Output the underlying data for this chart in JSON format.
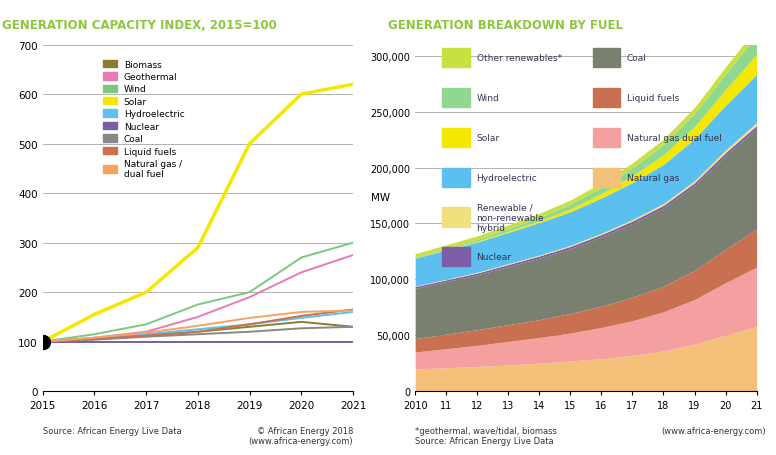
{
  "left_title": "GENERATION CAPACITY INDEX, 2015=100",
  "right_title": "GENERATION BREAKDOWN BY FUEL",
  "title_color": "#8dc63f",
  "left_years": [
    2015,
    2016,
    2017,
    2018,
    2019,
    2020,
    2021
  ],
  "left_series": {
    "Biomass": [
      100,
      105,
      112,
      120,
      130,
      140,
      130
    ],
    "Geothermal": [
      100,
      108,
      120,
      150,
      190,
      240,
      275
    ],
    "Wind": [
      100,
      115,
      135,
      175,
      200,
      270,
      300
    ],
    "Solar": [
      100,
      155,
      200,
      290,
      500,
      600,
      620
    ],
    "Hydroelectric": [
      100,
      107,
      115,
      125,
      135,
      148,
      160
    ],
    "Nuclear": [
      100,
      100,
      100,
      100,
      100,
      100,
      100
    ],
    "Coal": [
      100,
      104,
      110,
      115,
      120,
      127,
      130
    ],
    "Liquid fuels": [
      100,
      106,
      112,
      120,
      135,
      152,
      165
    ],
    "Natural gas /\ndual fuel": [
      100,
      108,
      118,
      132,
      148,
      160,
      163
    ]
  },
  "left_colors": {
    "Biomass": "#8B7D2A",
    "Geothermal": "#e87bb5",
    "Wind": "#7dc87d",
    "Solar": "#f5e800",
    "Hydroelectric": "#5bbfef",
    "Nuclear": "#7b5ea7",
    "Coal": "#888888",
    "Liquid fuels": "#c87050",
    "Natural gas /\ndual fuel": "#f4a460"
  },
  "right_years": [
    2010,
    2011,
    2012,
    2013,
    2014,
    2015,
    2016,
    2017,
    2018,
    2019,
    2020,
    2021
  ],
  "right_series": {
    "Natural gas": [
      20000,
      21000,
      22000,
      23500,
      25000,
      27000,
      29000,
      32000,
      36000,
      42000,
      50000,
      58000
    ],
    "Natural gas dual fuel": [
      15000,
      17000,
      19000,
      21000,
      23000,
      25000,
      28000,
      31000,
      35000,
      40000,
      47000,
      53000
    ],
    "Liquid fuels": [
      12000,
      13000,
      14000,
      15000,
      16000,
      17500,
      19000,
      21000,
      23000,
      26000,
      30000,
      34000
    ],
    "Coal": [
      45000,
      47000,
      49000,
      52000,
      55000,
      58000,
      62000,
      66000,
      70000,
      76000,
      84000,
      90000
    ],
    "Nuclear": [
      1500,
      1600,
      1700,
      1800,
      1900,
      2000,
      2100,
      2200,
      2300,
      2400,
      2500,
      2600
    ],
    "Renewable /\nnon-renewable\nhybrid": [
      500,
      600,
      700,
      800,
      900,
      1000,
      1200,
      1400,
      1600,
      1900,
      2300,
      2800
    ],
    "Hydroelectric": [
      25000,
      26000,
      27000,
      28000,
      29000,
      30000,
      31500,
      33000,
      35000,
      37500,
      40000,
      43000
    ],
    "Solar": [
      200,
      400,
      700,
      1100,
      1700,
      2600,
      4000,
      6000,
      8500,
      11000,
      14000,
      18000
    ],
    "Wind": [
      800,
      1200,
      1700,
      2300,
      3100,
      4200,
      5500,
      7200,
      9200,
      11500,
      14000,
      17000
    ],
    "Other renewables*": [
      3000,
      3100,
      3200,
      3300,
      3500,
      3700,
      4000,
      4400,
      4900,
      5500,
      6200,
      7000
    ]
  },
  "right_colors": {
    "Natural gas": "#f4c07a",
    "Natural gas dual fuel": "#f4a0a0",
    "Liquid fuels": "#c87050",
    "Coal": "#7a8070",
    "Nuclear": "#7b5ea7",
    "Renewable /\nnon-renewable\nhybrid": "#f0e080",
    "Hydroelectric": "#5bbfef",
    "Solar": "#f5e800",
    "Wind": "#90d890",
    "Other renewables*": "#c8e040"
  },
  "right_stack_order": [
    "Natural gas",
    "Natural gas dual fuel",
    "Liquid fuels",
    "Coal",
    "Nuclear",
    "Renewable /\nnon-renewable\nhybrid",
    "Hydroelectric",
    "Solar",
    "Wind",
    "Other renewables*"
  ],
  "right_legend_col1": [
    [
      "Other renewables*",
      "#c8e040"
    ],
    [
      "Wind",
      "#90d890"
    ],
    [
      "Solar",
      "#f5e800"
    ],
    [
      "Hydroelectric",
      "#5bbfef"
    ],
    [
      "Renewable /\nnon-renewable\nhybrid",
      "#f0e080"
    ],
    [
      "Nuclear",
      "#7b5ea7"
    ]
  ],
  "right_legend_col2": [
    [
      "Coal",
      "#7a8070"
    ],
    [
      "Liquid fuels",
      "#c87050"
    ],
    [
      "Natural gas dual fuel",
      "#f4a0a0"
    ],
    [
      "Natural gas",
      "#f4c07a"
    ]
  ],
  "left_footnote": "Source: African Energy Live Data",
  "left_footnote2": "© African Energy 2018\n(www.africa-energy.com)",
  "right_footnote": "*geothermal, wave/tidal, biomass\nSource: African Energy Live Data",
  "right_footnote2": "(www.africa-energy.com)"
}
